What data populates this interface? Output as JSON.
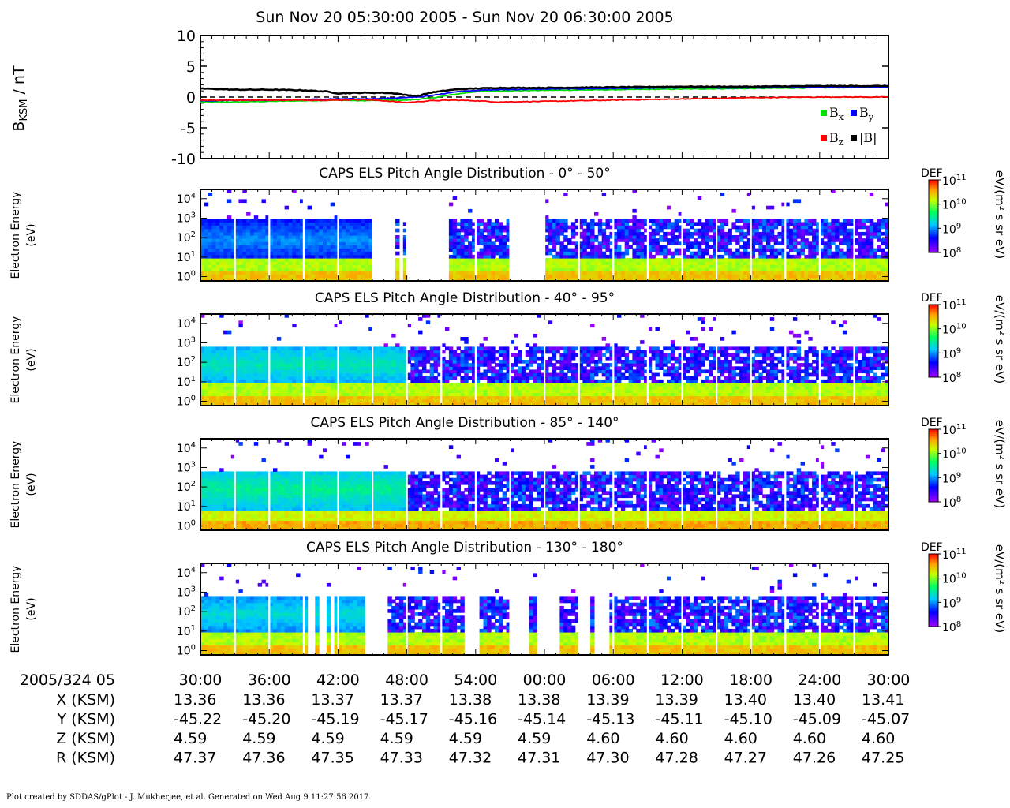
{
  "title": "Sun Nov 20 05:30:00 2005 - Sun Nov 20 06:30:00 2005",
  "footer": "Plot created by SDDAS/gPlot - J. Mukherjee, et al.  Generated on Wed Aug 9 11:27:56 2017.",
  "colors": {
    "bx": "#00dd00",
    "by": "#0000ff",
    "bz": "#ff0000",
    "bmag": "#000000"
  },
  "chart_data": [
    {
      "type": "line",
      "ylabel_main": "B",
      "ylabel_sub": "KSM",
      "ylabel_unit": " / nT",
      "ylim": [
        -10,
        10
      ],
      "yticks": [
        "10",
        "5",
        "0",
        "-5",
        "-10"
      ],
      "ytick_values": [
        10,
        5,
        0,
        -5,
        -10
      ],
      "xlim_minutes": [
        0,
        60
      ],
      "legend": {
        "placement": "bottom-right",
        "rows": [
          [
            "x",
            "y"
          ],
          [
            "z",
            "|B|"
          ]
        ]
      },
      "series": [
        {
          "name": "B",
          "sub": "x",
          "key": "bx",
          "x": [
            0,
            3,
            6,
            9,
            12,
            14,
            16,
            18,
            20,
            22,
            24,
            26,
            30,
            36,
            42,
            48,
            54,
            60
          ],
          "y": [
            -0.8,
            -0.8,
            -0.7,
            -0.6,
            -0.5,
            -0.6,
            -0.5,
            -0.5,
            -0.2,
            0.4,
            0.9,
            1.0,
            1.1,
            1.2,
            1.3,
            1.4,
            1.5,
            1.6
          ]
        },
        {
          "name": "B",
          "sub": "y",
          "key": "by",
          "x": [
            0,
            3,
            6,
            9,
            12,
            14,
            16,
            18,
            20,
            22,
            24,
            26,
            30,
            36,
            42,
            48,
            54,
            60
          ],
          "y": [
            -0.6,
            -0.5,
            -0.5,
            -0.4,
            -0.3,
            -0.3,
            -0.2,
            -0.1,
            0.2,
            0.8,
            1.1,
            1.2,
            1.3,
            1.4,
            1.5,
            1.5,
            1.6,
            1.6
          ]
        },
        {
          "name": "B",
          "sub": "z",
          "key": "bz",
          "x": [
            0,
            3,
            6,
            9,
            12,
            14,
            16,
            18,
            20,
            22,
            24,
            26,
            30,
            36,
            42,
            48,
            54,
            60
          ],
          "y": [
            -0.5,
            -0.5,
            -0.5,
            -0.5,
            -0.5,
            -0.4,
            -0.6,
            -0.9,
            -0.6,
            -0.5,
            -0.6,
            -0.8,
            -0.7,
            -0.5,
            -0.3,
            -0.1,
            0.0,
            0.0
          ]
        },
        {
          "name": "|B|",
          "sub": "",
          "key": "bmag",
          "x": [
            0,
            3,
            6,
            9,
            11,
            12,
            14,
            16,
            17,
            18,
            19,
            20,
            22,
            24,
            26,
            30,
            36,
            42,
            48,
            54,
            60
          ],
          "y": [
            1.4,
            1.2,
            1.2,
            1.1,
            0.9,
            0.6,
            0.7,
            0.7,
            0.6,
            0.3,
            0.2,
            0.7,
            1.2,
            1.4,
            1.5,
            1.5,
            1.6,
            1.7,
            1.7,
            1.8,
            1.8
          ]
        }
      ],
      "reference_line": {
        "y": 0,
        "style": "dashed"
      }
    },
    {
      "type": "heatmap",
      "title": "CAPS ELS Pitch Angle Distribution - 0° - 50°",
      "ylabel": [
        "Electron Energy",
        "(eV)"
      ],
      "yscale": "log",
      "ylim": [
        0.6,
        30000
      ],
      "yticks": [
        1,
        10,
        100,
        1000,
        10000
      ],
      "colorbar": {
        "label": "DEF",
        "unit": "eV/(m² s sr eV)",
        "range": [
          100000000.0,
          100000000000.0
        ],
        "ticks": [
          8,
          9,
          10,
          11
        ]
      },
      "gaps_minutes": [
        [
          15.1,
          17.0
        ],
        [
          17.3,
          17.7
        ],
        [
          17.9,
          21.6
        ],
        [
          27.0,
          30.0
        ]
      ],
      "hot_band_top_eV": 800,
      "hot_band_level": 9.0,
      "hot_band_uniform_until_minute": 15,
      "low_band_top_eV": 8,
      "low_band_level": 10.1
    },
    {
      "type": "heatmap",
      "title": "CAPS ELS Pitch Angle Distribution - 40° - 95°",
      "ylabel": [
        "Electron Energy",
        "(eV)"
      ],
      "yscale": "log",
      "ylim": [
        0.6,
        30000
      ],
      "yticks": [
        1,
        10,
        100,
        1000,
        10000
      ],
      "colorbar": {
        "label": "DEF",
        "unit": "eV/(m² s sr eV)",
        "range": [
          100000000.0,
          100000000000.0
        ],
        "ticks": [
          8,
          9,
          10,
          11
        ]
      },
      "gaps_minutes": [],
      "hot_band_top_eV": 600,
      "hot_band_level": 9.4,
      "hot_band_uniform_until_minute": 18,
      "low_band_top_eV": 8,
      "low_band_level": 10.1
    },
    {
      "type": "heatmap",
      "title": "CAPS ELS Pitch Angle Distribution - 85° - 140°",
      "ylabel": [
        "Electron Energy",
        "(eV)"
      ],
      "yscale": "log",
      "ylim": [
        0.6,
        30000
      ],
      "yticks": [
        1,
        10,
        100,
        1000,
        10000
      ],
      "colorbar": {
        "label": "DEF",
        "unit": "eV/(m² s sr eV)",
        "range": [
          100000000.0,
          100000000000.0
        ],
        "ticks": [
          8,
          9,
          10,
          11
        ]
      },
      "gaps_minutes": [],
      "hot_band_top_eV": 600,
      "hot_band_level": 9.5,
      "hot_band_uniform_until_minute": 18,
      "low_band_top_eV": 6,
      "low_band_level": 10.2
    },
    {
      "type": "heatmap",
      "title": "CAPS ELS Pitch Angle Distribution - 130° - 180°",
      "ylabel": [
        "Electron Energy",
        "(eV)"
      ],
      "yscale": "log",
      "ylim": [
        0.6,
        30000
      ],
      "yticks": [
        1,
        10,
        100,
        1000,
        10000
      ],
      "colorbar": {
        "label": "DEF",
        "unit": "eV/(m² s sr eV)",
        "range": [
          100000000.0,
          100000000000.0
        ],
        "ticks": [
          8,
          9,
          10,
          11
        ]
      },
      "gaps_minutes": [
        [
          9.3,
          10.1
        ],
        [
          10.5,
          10.9
        ],
        [
          11.4,
          11.7
        ],
        [
          14.3,
          15.6
        ],
        [
          15.6,
          16.3
        ],
        [
          22.9,
          24.2
        ],
        [
          27.0,
          28.6
        ],
        [
          29.3,
          31.4
        ],
        [
          32.9,
          34.1
        ],
        [
          34.3,
          35.6
        ]
      ],
      "hot_band_top_eV": 600,
      "hot_band_level": 9.3,
      "hot_band_uniform_until_minute": 15,
      "low_band_top_eV": 8,
      "low_band_level": 10.1
    }
  ],
  "x_axis": {
    "date_label": "2005/324 05",
    "ticks": [
      "30:00",
      "36:00",
      "42:00",
      "48:00",
      "54:00",
      "00:00",
      "06:00",
      "12:00",
      "18:00",
      "24:00",
      "30:00"
    ],
    "rows": [
      {
        "label": "X (KSM)",
        "values": [
          "13.36",
          "13.36",
          "13.37",
          "13.37",
          "13.38",
          "13.38",
          "13.39",
          "13.39",
          "13.40",
          "13.40",
          "13.41"
        ]
      },
      {
        "label": "Y (KSM)",
        "values": [
          "-45.22",
          "-45.20",
          "-45.19",
          "-45.17",
          "-45.16",
          "-45.14",
          "-45.13",
          "-45.11",
          "-45.10",
          "-45.09",
          "-45.07"
        ]
      },
      {
        "label": "Z (KSM)",
        "values": [
          "4.59",
          "4.59",
          "4.59",
          "4.59",
          "4.59",
          "4.59",
          "4.60",
          "4.60",
          "4.60",
          "4.60",
          "4.60"
        ]
      },
      {
        "label": "R (KSM)",
        "values": [
          "47.37",
          "47.36",
          "47.35",
          "47.33",
          "47.32",
          "47.31",
          "47.30",
          "47.28",
          "47.27",
          "47.26",
          "47.25"
        ]
      }
    ]
  }
}
